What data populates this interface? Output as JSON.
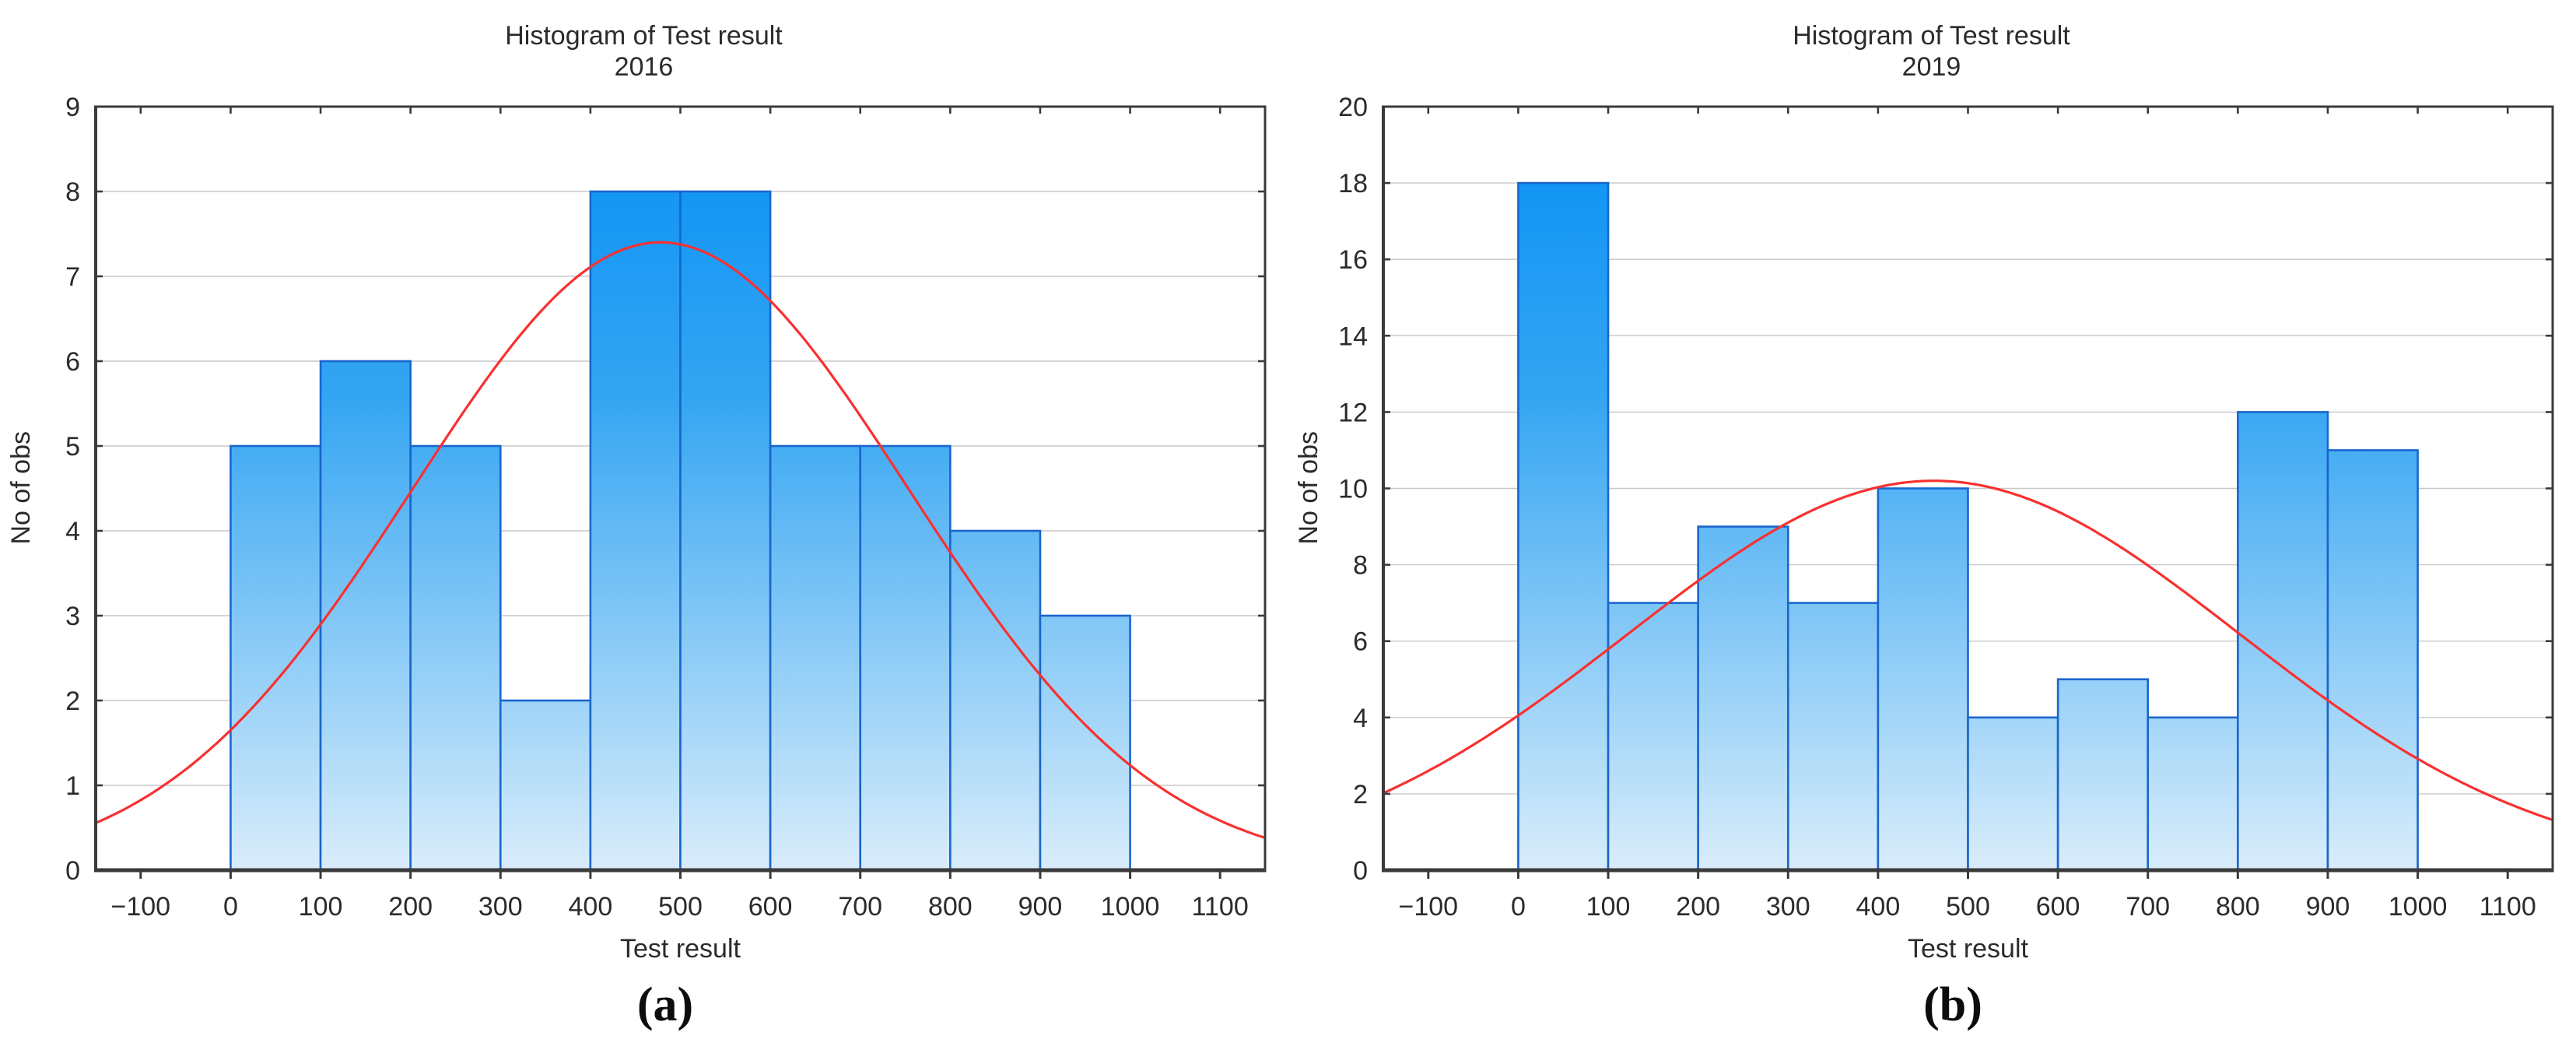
{
  "figure_caption_style": "parenthesized letters under each panel",
  "colors": {
    "bar_gradient_top": "#0690F6",
    "bar_gradient_mid": "#34A5F2",
    "bar_gradient_bottom": "#D9EDFB",
    "bar_border": "#1A66CC",
    "normal_curve": "#F93030",
    "gridline": "#C8C8C8",
    "axis_frame": "#3A3A3A",
    "text": "#2B2B2B",
    "background": "#FFFFFF"
  },
  "chart_data": [
    {
      "type": "bar",
      "chart_kind": "histogram",
      "title": "Histogram of Test result",
      "subtitle": "2016",
      "xlabel": "Test result",
      "ylabel": "No of obs",
      "caption": "(a)",
      "bin_start": 0,
      "bin_width": 100,
      "categories": [
        "0-100",
        "100-200",
        "200-300",
        "300-400",
        "400-500",
        "500-600",
        "600-700",
        "700-800",
        "800-900",
        "900-1000"
      ],
      "values": [
        5,
        6,
        5,
        2,
        8,
        8,
        5,
        5,
        4,
        3
      ],
      "xlim": [
        -150,
        1150
      ],
      "ylim": [
        0,
        9
      ],
      "xticks": [
        -100,
        0,
        100,
        200,
        300,
        400,
        500,
        600,
        700,
        800,
        900,
        1000,
        1100
      ],
      "ytick_step": 1,
      "grid": "horizontal",
      "legend": "none",
      "normal_curve_fit": {
        "peak": 7.4,
        "mean": 478,
        "sigma": 276
      }
    },
    {
      "type": "bar",
      "chart_kind": "histogram",
      "title": "Histogram of Test result",
      "subtitle": "2019",
      "xlabel": "Test result",
      "ylabel": "No of obs",
      "caption": "(b)",
      "bin_start": 0,
      "bin_width": 100,
      "categories": [
        "0-100",
        "100-200",
        "200-300",
        "300-400",
        "400-500",
        "500-600",
        "600-700",
        "700-800",
        "800-900",
        "900-1000"
      ],
      "values": [
        18,
        7,
        9,
        7,
        10,
        4,
        5,
        4,
        12,
        11
      ],
      "xlim": [
        -150,
        1150
      ],
      "ylim": [
        0,
        20
      ],
      "xticks": [
        -100,
        0,
        100,
        200,
        300,
        400,
        500,
        600,
        700,
        800,
        900,
        1000,
        1100
      ],
      "ytick_step": 2,
      "grid": "horizontal",
      "legend": "none",
      "normal_curve_fit": {
        "peak": 10.2,
        "mean": 462,
        "sigma": 340
      }
    }
  ]
}
